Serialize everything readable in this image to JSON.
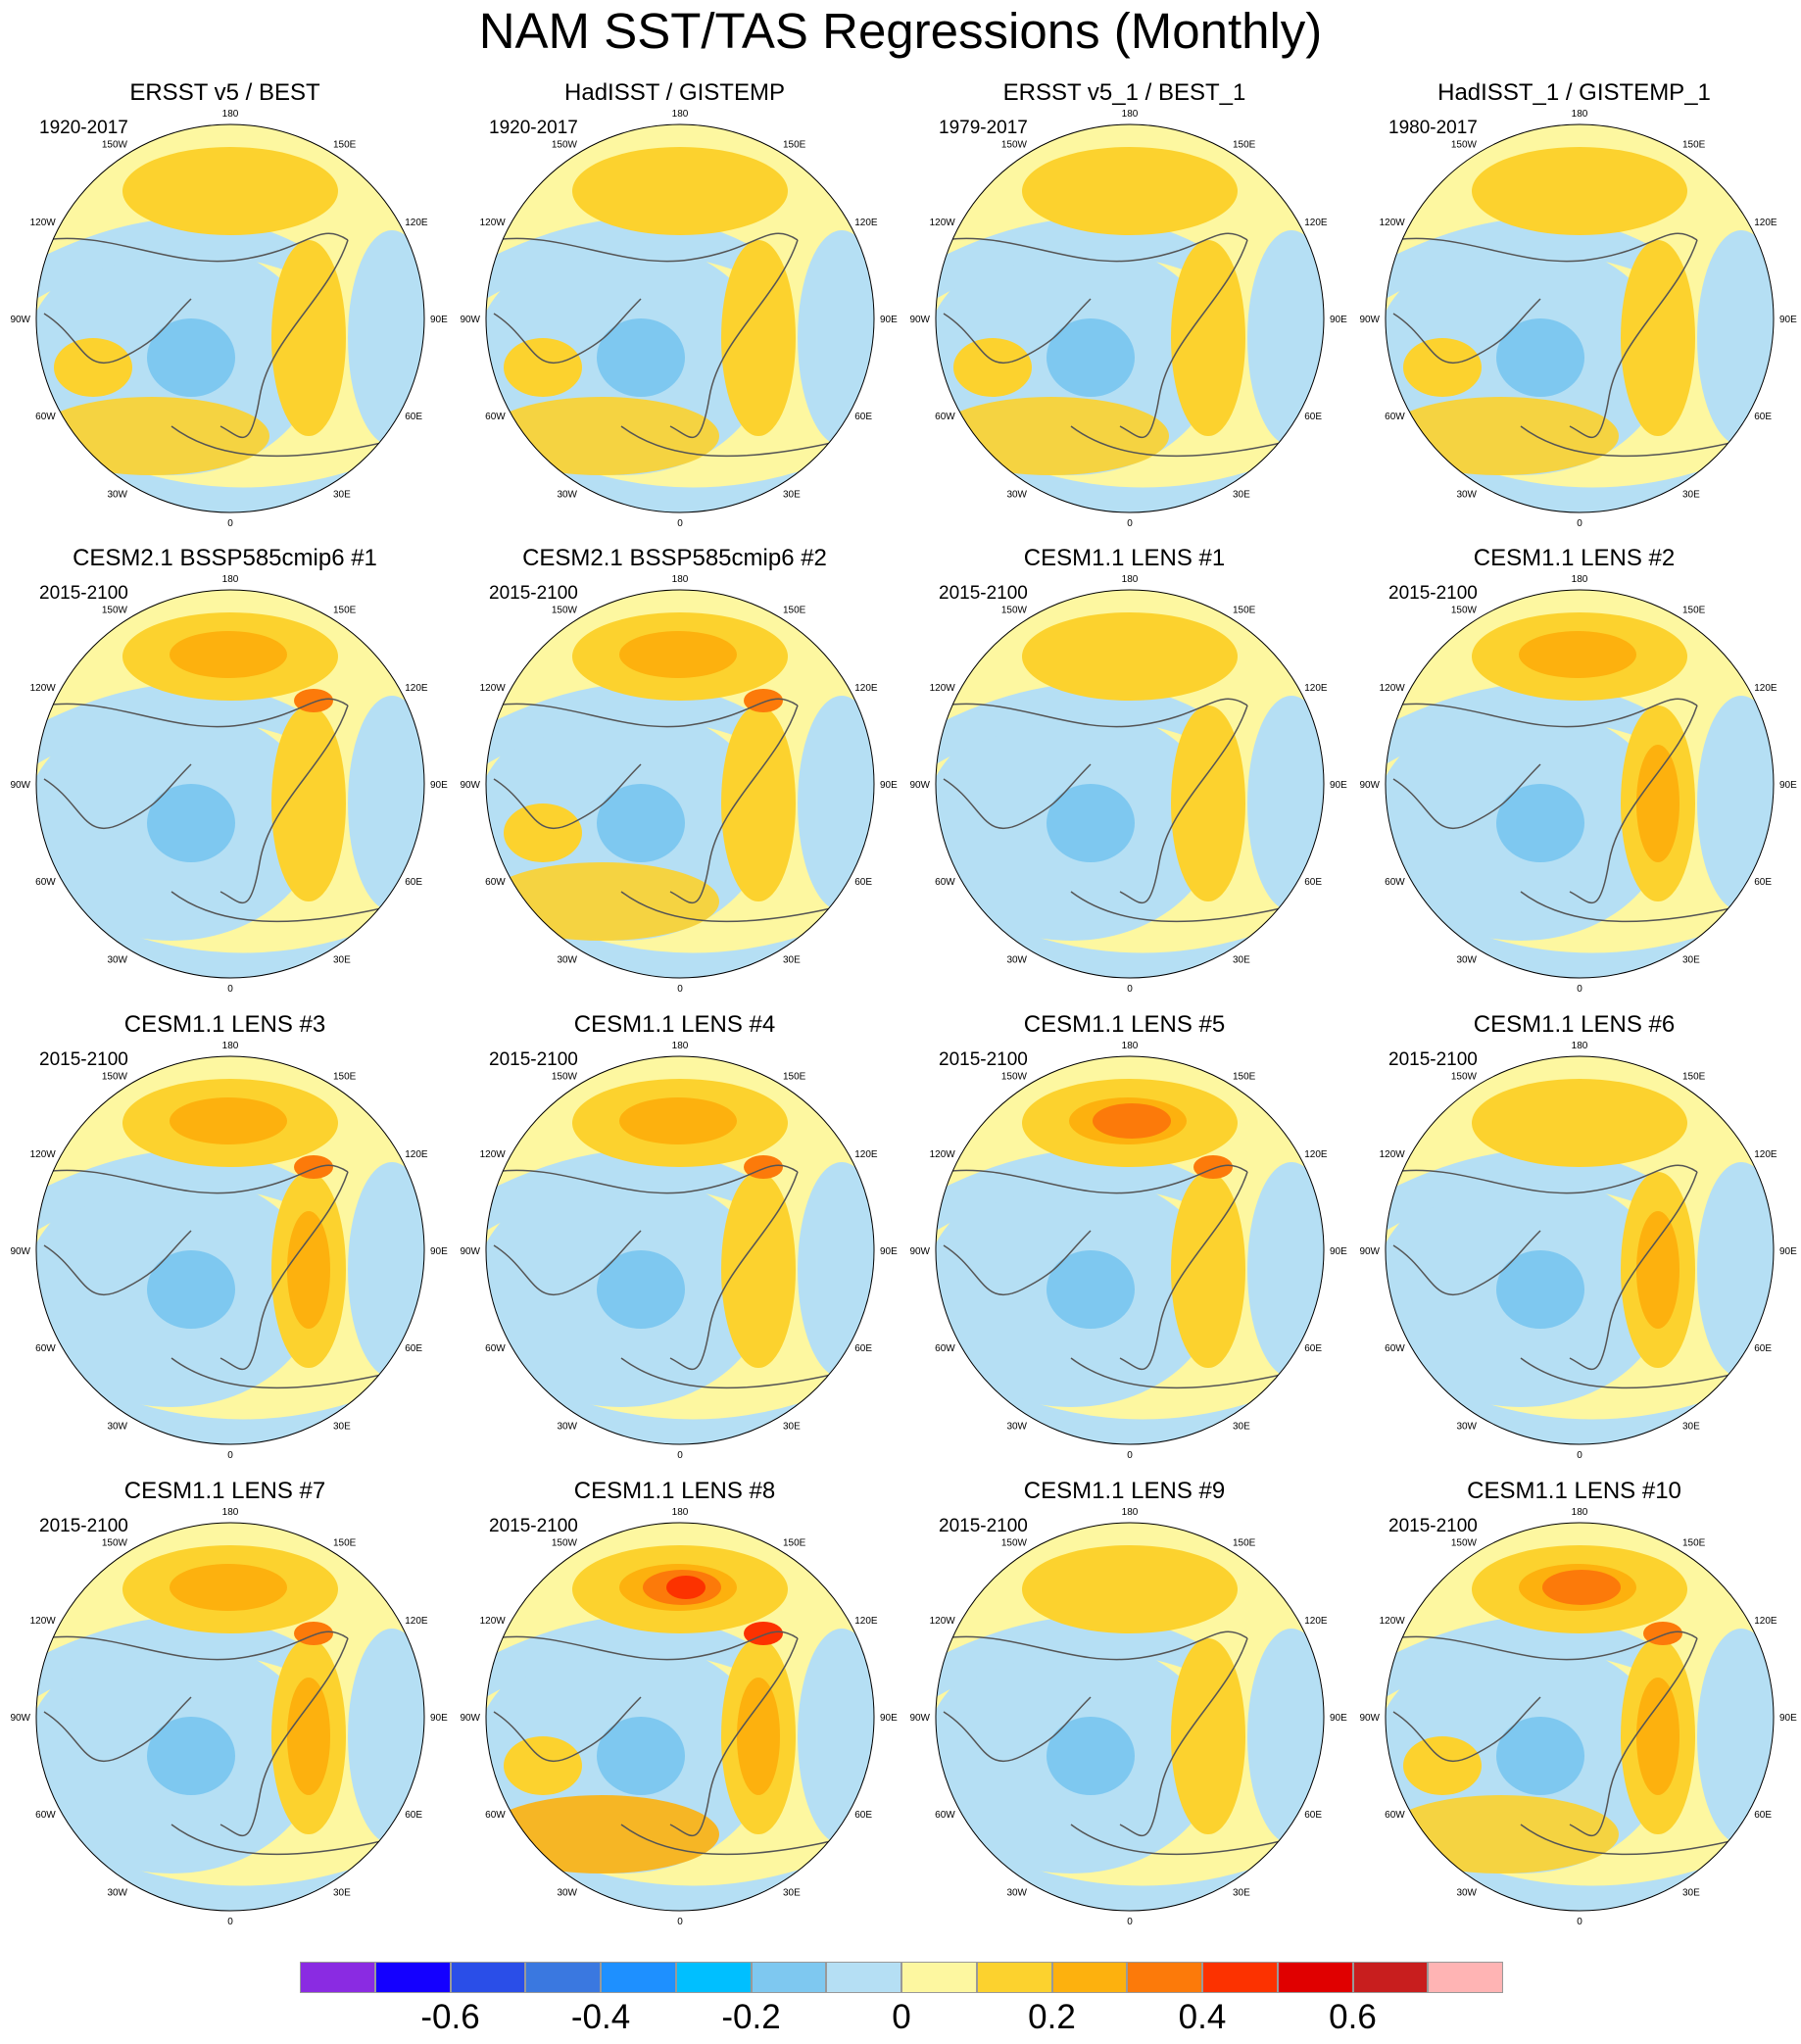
{
  "title": "NAM SST/TAS Regressions (Monthly)",
  "longitude_labels": {
    "top": "180",
    "upper_left": "150W",
    "upper_right": "150E",
    "left_upper": "120W",
    "right_upper": "120E",
    "left": "90W",
    "right": "90E",
    "left_lower": "60W",
    "right_lower": "60E",
    "lower_left": "30W",
    "lower_right": "30E",
    "bottom": "0"
  },
  "panels": [
    {
      "title": "ERSST v5 / BEST",
      "period": "1920-2017",
      "pacific_level": 1,
      "eurasia_level": 1,
      "atlantic_level": 1,
      "arctic_level": 1,
      "warm_extra": 0
    },
    {
      "title": "HadISST / GISTEMP",
      "period": "1920-2017",
      "pacific_level": 1,
      "eurasia_level": 1,
      "atlantic_level": 1,
      "arctic_level": 1,
      "warm_extra": 0
    },
    {
      "title": "ERSST v5_1 / BEST_1",
      "period": "1979-2017",
      "pacific_level": 1,
      "eurasia_level": 1,
      "atlantic_level": 1,
      "arctic_level": 1,
      "warm_extra": 0
    },
    {
      "title": "HadISST_1 / GISTEMP_1",
      "period": "1980-2017",
      "pacific_level": 1,
      "eurasia_level": 1,
      "atlantic_level": 1,
      "arctic_level": 1,
      "warm_extra": 0
    },
    {
      "title": "CESM2.1 BSSP585cmip6 #1",
      "period": "2015-2100",
      "pacific_level": 2,
      "eurasia_level": 1,
      "atlantic_level": 0,
      "arctic_level": 1,
      "warm_extra": 1
    },
    {
      "title": "CESM2.1 BSSP585cmip6 #2",
      "period": "2015-2100",
      "pacific_level": 2,
      "eurasia_level": 1,
      "atlantic_level": 1,
      "arctic_level": 1,
      "warm_extra": 1
    },
    {
      "title": "CESM1.1 LENS #1",
      "period": "2015-2100",
      "pacific_level": 1,
      "eurasia_level": 1,
      "atlantic_level": 0,
      "arctic_level": 1,
      "warm_extra": 0
    },
    {
      "title": "CESM1.1 LENS #2",
      "period": "2015-2100",
      "pacific_level": 2,
      "eurasia_level": 2,
      "atlantic_level": 0,
      "arctic_level": 1,
      "warm_extra": 0
    },
    {
      "title": "CESM1.1 LENS #3",
      "period": "2015-2100",
      "pacific_level": 2,
      "eurasia_level": 2,
      "atlantic_level": 0,
      "arctic_level": 1,
      "warm_extra": 1
    },
    {
      "title": "CESM1.1 LENS #4",
      "period": "2015-2100",
      "pacific_level": 2,
      "eurasia_level": 1,
      "atlantic_level": 0,
      "arctic_level": 1,
      "warm_extra": 1
    },
    {
      "title": "CESM1.1 LENS #5",
      "period": "2015-2100",
      "pacific_level": 3,
      "eurasia_level": 1,
      "atlantic_level": 0,
      "arctic_level": 1,
      "warm_extra": 1
    },
    {
      "title": "CESM1.1 LENS #6",
      "period": "2015-2100",
      "pacific_level": 1,
      "eurasia_level": 2,
      "atlantic_level": 0,
      "arctic_level": 1,
      "warm_extra": 0
    },
    {
      "title": "CESM1.1 LENS #7",
      "period": "2015-2100",
      "pacific_level": 2,
      "eurasia_level": 2,
      "atlantic_level": 0,
      "arctic_level": 1,
      "warm_extra": 1
    },
    {
      "title": "CESM1.1 LENS #8",
      "period": "2015-2100",
      "pacific_level": 4,
      "eurasia_level": 2,
      "atlantic_level": 2,
      "arctic_level": 1,
      "warm_extra": 2
    },
    {
      "title": "CESM1.1 LENS #9",
      "period": "2015-2100",
      "pacific_level": 1,
      "eurasia_level": 1,
      "atlantic_level": 0,
      "arctic_level": 1,
      "warm_extra": 0
    },
    {
      "title": "CESM1.1 LENS #10",
      "period": "2015-2100",
      "pacific_level": 3,
      "eurasia_level": 2,
      "atlantic_level": 1,
      "arctic_level": 1,
      "warm_extra": 1
    }
  ],
  "colorbar": {
    "colors": [
      "#8a2be2",
      "#1400ff",
      "#2a4ee8",
      "#3a78e0",
      "#1e90ff",
      "#00bfff",
      "#7ec8f0",
      "#b5dff4",
      "#fdf7a0",
      "#fcd22e",
      "#fdb10e",
      "#fc7a0a",
      "#fc3200",
      "#e00000",
      "#c81e1e",
      "#ffb4b4"
    ],
    "labels": [
      "-0.6",
      "-0.4",
      "-0.2",
      "0",
      "0.2",
      "0.4",
      "0.6"
    ],
    "label_box_index": [
      2,
      4,
      6,
      8,
      10,
      12,
      14
    ]
  }
}
